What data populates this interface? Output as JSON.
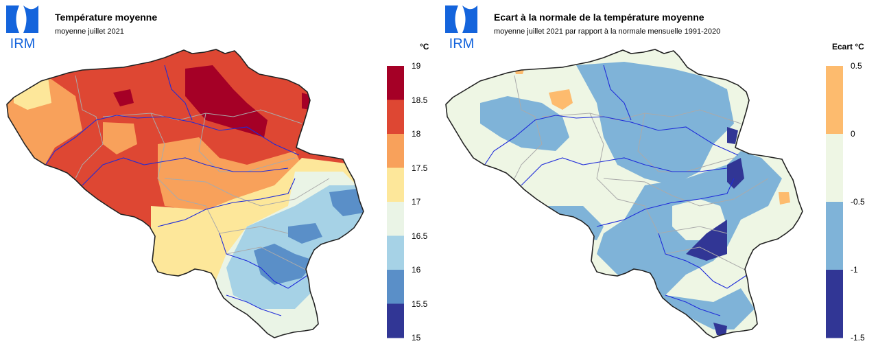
{
  "logo": {
    "text": "IRM",
    "color": "#1464dc"
  },
  "maps": [
    {
      "title": "Température moyenne",
      "subtitle": "moyenne juillet 2021",
      "unit_label": "°C",
      "legend": {
        "ticks": [
          "19",
          "18.5",
          "18",
          "17.5",
          "17",
          "16.5",
          "16",
          "15.5",
          "15"
        ],
        "colors": [
          "#a50026",
          "#de4733",
          "#f8a15b",
          "#fde79a",
          "#eaf4e6",
          "#a6d2e6",
          "#5a8fc8",
          "#313695"
        ]
      }
    },
    {
      "title": "Ecart à la normale de la température moyenne",
      "subtitle": "moyenne juillet 2021 par rapport à la normale mensuelle 1991-2020",
      "unit_label": "Ecart  °C",
      "legend": {
        "ticks": [
          "0.5",
          "0",
          "-0.5",
          "-1",
          "-1.5"
        ],
        "colors": [
          "#fdbb6e",
          "#eef6e4",
          "#7fb3d8",
          "#313695"
        ]
      }
    }
  ]
}
